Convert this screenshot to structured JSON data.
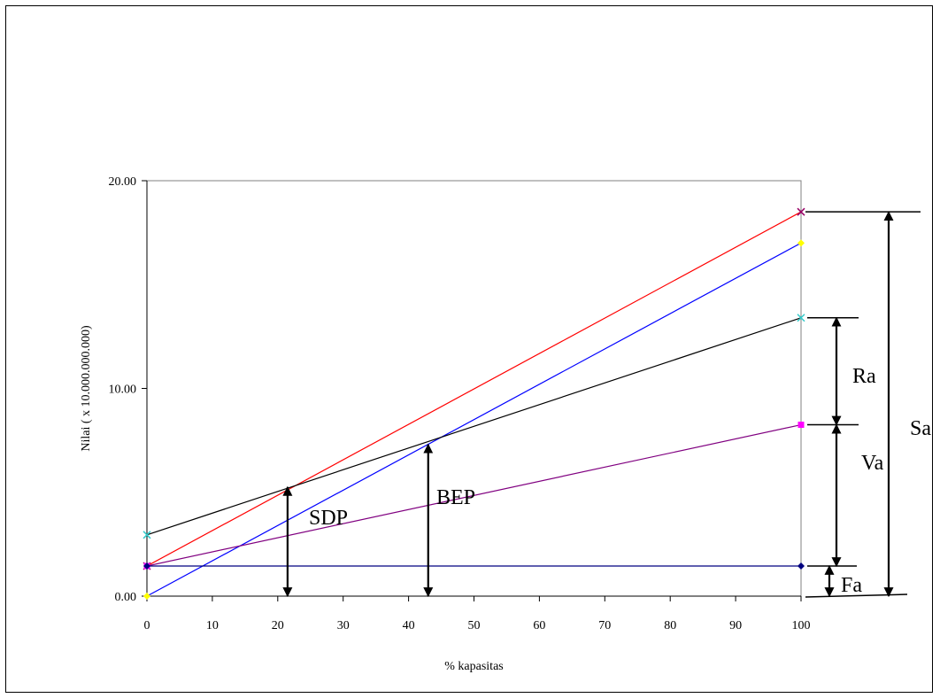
{
  "chart_data": {
    "type": "line",
    "xlabel": "% kapasitas",
    "ylabel": "Nilai ( x 10.000.000.000)",
    "xlim": [
      0,
      100
    ],
    "ylim": [
      0,
      20
    ],
    "x_ticks": [
      "0",
      "10",
      "20",
      "30",
      "40",
      "50",
      "60",
      "70",
      "80",
      "90",
      "100"
    ],
    "y_ticks": [
      "0.00",
      "10.00",
      "20.00"
    ],
    "grid": false,
    "legend": "none",
    "series": [
      {
        "color": "#ff0000",
        "marker": "x",
        "marker_color": "#990066",
        "x": [
          0,
          100
        ],
        "y": [
          1.45,
          18.5
        ]
      },
      {
        "color": "#0000ff",
        "marker": "diamond",
        "marker_color": "#ffff00",
        "x": [
          0,
          100
        ],
        "y": [
          0.0,
          17.0
        ]
      },
      {
        "color": "#000000",
        "marker": "x",
        "marker_color": "#33cccc",
        "x": [
          0,
          100
        ],
        "y": [
          2.95,
          13.4
        ]
      },
      {
        "color": "#800080",
        "marker": "square",
        "marker_color": "#ff00ff",
        "x": [
          0,
          100
        ],
        "y": [
          1.45,
          8.25
        ]
      },
      {
        "color": "#000080",
        "marker": "diamond",
        "marker_color": "#000080",
        "x": [
          0,
          100
        ],
        "y": [
          1.45,
          1.45
        ]
      }
    ],
    "annotations": {
      "sdp": {
        "text": "SDP",
        "x": 21.5,
        "y_from": 0,
        "y_to": 5.25
      },
      "bep": {
        "text": "BEP",
        "x": 43.0,
        "y_from": 0,
        "y_to": 7.3
      },
      "ra": {
        "text": "Ra",
        "y_from": 8.25,
        "y_to": 13.4
      },
      "va": {
        "text": "Va",
        "y_from": 1.45,
        "y_to": 8.25
      },
      "fa": {
        "text": "Fa",
        "y_from": 0,
        "y_to": 1.45
      },
      "sa": {
        "text": "Sa",
        "y_from": 0,
        "y_to": 18.5
      }
    }
  }
}
